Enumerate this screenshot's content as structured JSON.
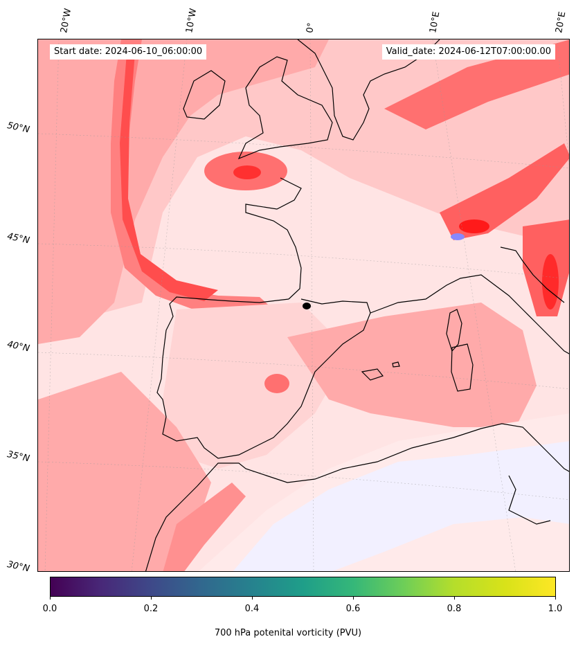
{
  "map": {
    "start_date": "Start date: 2024-06-10_06:00:00",
    "valid_date": "Valid_date: 2024-06-12T07:00:00.00",
    "longitude_labels": [
      "20°W",
      "10°W",
      "0°",
      "10°E",
      "20°E"
    ],
    "latitude_labels": [
      "50°N",
      "45°N",
      "40°N",
      "35°N",
      "30°N"
    ],
    "field_colors": {
      "background": "#ffe4e4",
      "light": "#ffc8c8",
      "medium": "#ffaaaa",
      "strong": "#ff7070",
      "max": "#ff3030",
      "negative": "#eeeeff",
      "coast": "#000000"
    }
  },
  "colorbar": {
    "label": "700 hPa potenital vorticity (PVU)",
    "colormap": "viridis",
    "ticks": [
      "0.0",
      "0.2",
      "0.4",
      "0.6",
      "0.8",
      "1.0"
    ],
    "range": [
      0.0,
      1.0
    ]
  }
}
